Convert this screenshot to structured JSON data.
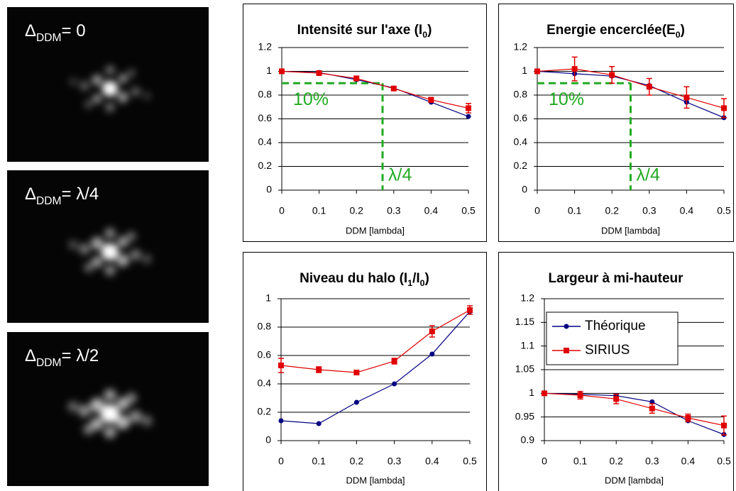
{
  "images": [
    {
      "label": [
        {
          "text": "Δ"
        },
        {
          "text": "DDM",
          "sub": true
        },
        {
          "text": "= 0"
        }
      ]
    },
    {
      "label": [
        {
          "text": "Δ"
        },
        {
          "text": "DDM",
          "sub": true
        },
        {
          "text": "= λ/4"
        }
      ]
    },
    {
      "label": [
        {
          "text": "Δ"
        },
        {
          "text": "DDM",
          "sub": true
        },
        {
          "text": "= λ/2"
        }
      ]
    }
  ],
  "chart_data": [
    {
      "type": "line",
      "title": [
        {
          "text": "Intensité sur l'axe (I"
        },
        {
          "text": "0",
          "sub": true
        },
        {
          "text": ")"
        }
      ],
      "xlabel": "DDM [lambda]",
      "x": [
        0,
        0.1,
        0.2,
        0.3,
        0.4,
        0.5
      ],
      "xlim": [
        0,
        0.5
      ],
      "xticks": [
        0,
        0.1,
        0.2,
        0.3,
        0.4,
        0.5
      ],
      "ylim": [
        0,
        1.2
      ],
      "yticks": [
        0,
        0.2,
        0.4,
        0.6,
        0.8,
        1,
        1.2
      ],
      "grid": true,
      "series": [
        {
          "name": "Théorique",
          "color": "#000080",
          "marker": "circle",
          "values": [
            1,
            0.99,
            0.93,
            0.86,
            0.74,
            0.62
          ]
        },
        {
          "name": "SIRIUS",
          "color": "#e00000",
          "marker": "square",
          "values": [
            1,
            0.985,
            0.94,
            0.855,
            0.76,
            0.69
          ],
          "errors": [
            0,
            0.015,
            0.02,
            0.015,
            0.02,
            0.04
          ]
        }
      ],
      "threshold": {
        "y": 0.9,
        "x": 0.27,
        "color": "#22aa22",
        "y_label": "10%",
        "x_label": "λ/4"
      }
    },
    {
      "type": "line",
      "title": [
        {
          "text": "Energie encerclée(E"
        },
        {
          "text": "0",
          "sub": true
        },
        {
          "text": ")"
        }
      ],
      "xlabel": "DDM [lambda]",
      "x": [
        0,
        0.1,
        0.2,
        0.3,
        0.4,
        0.5
      ],
      "xlim": [
        0,
        0.5
      ],
      "xticks": [
        0,
        0.1,
        0.2,
        0.3,
        0.4,
        0.5
      ],
      "ylim": [
        0,
        1.2
      ],
      "yticks": [
        0,
        0.2,
        0.4,
        0.6,
        0.8,
        1,
        1.2
      ],
      "grid": true,
      "series": [
        {
          "name": "Théorique",
          "color": "#000080",
          "marker": "circle",
          "values": [
            1,
            0.98,
            0.96,
            0.88,
            0.74,
            0.61
          ]
        },
        {
          "name": "SIRIUS",
          "color": "#e00000",
          "marker": "square",
          "values": [
            1,
            1.02,
            0.97,
            0.87,
            0.78,
            0.69
          ],
          "errors": [
            0,
            0.1,
            0.07,
            0.07,
            0.09,
            0.08
          ]
        }
      ],
      "threshold": {
        "y": 0.9,
        "x": 0.25,
        "color": "#22aa22",
        "y_label": "10%",
        "x_label": "λ/4"
      }
    },
    {
      "type": "line",
      "title": [
        {
          "text": "Niveau du halo (I"
        },
        {
          "text": "1",
          "sub": true
        },
        {
          "text": "/I"
        },
        {
          "text": "0",
          "sub": true
        },
        {
          "text": ")"
        }
      ],
      "xlabel": "DDM [lambda]",
      "x": [
        0,
        0.1,
        0.2,
        0.3,
        0.4,
        0.5
      ],
      "xlim": [
        0,
        0.5
      ],
      "xticks": [
        0,
        0.1,
        0.2,
        0.3,
        0.4,
        0.5
      ],
      "ylim": [
        0,
        1
      ],
      "yticks": [
        0,
        0.2,
        0.4,
        0.6,
        0.8,
        1
      ],
      "grid": true,
      "series": [
        {
          "name": "Théorique",
          "color": "#000080",
          "marker": "circle",
          "values": [
            0.14,
            0.12,
            0.27,
            0.4,
            0.61,
            0.91
          ]
        },
        {
          "name": "SIRIUS",
          "color": "#e00000",
          "marker": "square",
          "values": [
            0.53,
            0.5,
            0.48,
            0.56,
            0.77,
            0.92
          ],
          "errors": [
            0.05,
            0.02,
            0.01,
            0.02,
            0.04,
            0.03
          ]
        }
      ]
    },
    {
      "type": "line",
      "title": [
        {
          "text": "Largeur à mi-hauteur"
        }
      ],
      "xlabel": "DDM [lambda]",
      "x": [
        0,
        0.1,
        0.2,
        0.3,
        0.4,
        0.5
      ],
      "xlim": [
        0,
        0.5
      ],
      "xticks": [
        0,
        0.1,
        0.2,
        0.3,
        0.4,
        0.5
      ],
      "ylim": [
        0.9,
        1.2
      ],
      "yticks": [
        0.9,
        0.95,
        1,
        1.05,
        1.1,
        1.15,
        1.2
      ],
      "grid": true,
      "legend": "upper-left",
      "series": [
        {
          "name": "Théorique",
          "color": "#000080",
          "marker": "circle",
          "values": [
            1,
            0.998,
            0.995,
            0.982,
            0.942,
            0.913
          ]
        },
        {
          "name": "SIRIUS",
          "color": "#e00000",
          "marker": "square",
          "values": [
            1,
            0.996,
            0.988,
            0.968,
            0.948,
            0.932
          ],
          "errors": [
            0,
            0.008,
            0.01,
            0.01,
            0.008,
            0.02
          ]
        }
      ]
    }
  ]
}
